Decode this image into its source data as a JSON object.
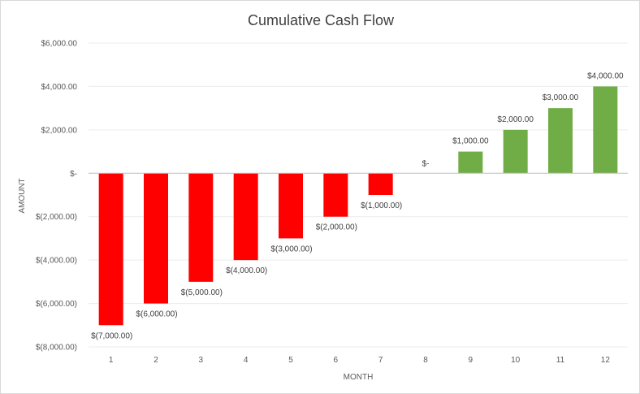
{
  "chart_data": {
    "type": "bar",
    "title": "Cumulative Cash Flow",
    "xlabel": "MONTH",
    "ylabel": "AMOUNT",
    "categories": [
      "1",
      "2",
      "3",
      "4",
      "5",
      "6",
      "7",
      "8",
      "9",
      "10",
      "11",
      "12"
    ],
    "values": [
      -7000,
      -6000,
      -5000,
      -4000,
      -3000,
      -2000,
      -1000,
      0,
      1000,
      2000,
      3000,
      4000
    ],
    "data_labels": [
      "$(7,000.00)",
      "$(6,000.00)",
      "$(5,000.00)",
      "$(4,000.00)",
      "$(3,000.00)",
      "$(2,000.00)",
      "$(1,000.00)",
      "$-",
      "$1,000.00",
      "$2,000.00",
      "$3,000.00",
      "$4,000.00"
    ],
    "ylim": [
      -8000,
      6000
    ],
    "y_ticks": [
      6000,
      4000,
      2000,
      0,
      -2000,
      -4000,
      -6000,
      -8000
    ],
    "y_tick_labels": [
      "$6,000.00",
      "$4,000.00",
      "$2,000.00",
      "$-",
      "$(2,000.00)",
      "$(4,000.00)",
      "$(6,000.00)",
      "$(8,000.00)"
    ],
    "grid": true,
    "legend": "none",
    "colors": {
      "negative": "#ff0000",
      "positive": "#70ad47",
      "axis": "#bfbfbf",
      "grid": "#ececec"
    }
  }
}
